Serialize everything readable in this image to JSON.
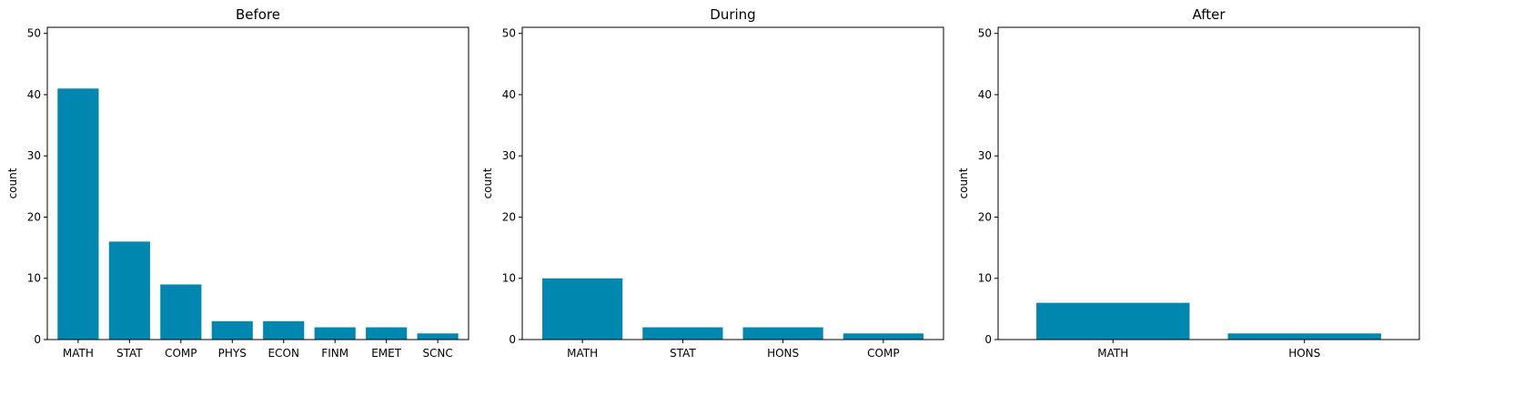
{
  "chart_data": [
    {
      "type": "bar",
      "title": "Before",
      "xlabel": "",
      "ylabel": "count",
      "ylim": [
        0,
        51
      ],
      "yticks": [
        0,
        10,
        20,
        30,
        40,
        50
      ],
      "categories": [
        "MATH",
        "STAT",
        "COMP",
        "PHYS",
        "ECON",
        "FINM",
        "EMET",
        "SCNC"
      ],
      "values": [
        41,
        16,
        9,
        3,
        3,
        2,
        2,
        1
      ],
      "color": "#0087b0",
      "grid": false,
      "legend": "none"
    },
    {
      "type": "bar",
      "title": "During",
      "xlabel": "",
      "ylabel": "count",
      "ylim": [
        0,
        51
      ],
      "yticks": [
        0,
        10,
        20,
        30,
        40,
        50
      ],
      "categories": [
        "MATH",
        "STAT",
        "HONS",
        "COMP"
      ],
      "values": [
        10,
        2,
        2,
        1
      ],
      "color": "#0087b0",
      "grid": false,
      "legend": "none"
    },
    {
      "type": "bar",
      "title": "After",
      "xlabel": "",
      "ylabel": "count",
      "ylim": [
        0,
        51
      ],
      "yticks": [
        0,
        10,
        20,
        30,
        40,
        50
      ],
      "categories": [
        "MATH",
        "HONS"
      ],
      "values": [
        6,
        1
      ],
      "color": "#0087b0",
      "grid": false,
      "legend": "none"
    }
  ]
}
